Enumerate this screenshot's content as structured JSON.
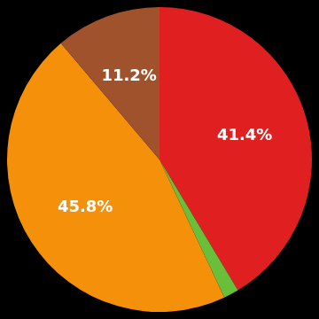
{
  "chart_data": {
    "type": "pie",
    "values": [
      41.4,
      1.6,
      45.8,
      11.2
    ],
    "colors": [
      "#e02020",
      "#6abf3a",
      "#f5900a",
      "#a0522d"
    ],
    "value_labels": [
      "41.4%",
      null,
      "45.8%",
      "11.2%"
    ],
    "data_labels": true
  }
}
